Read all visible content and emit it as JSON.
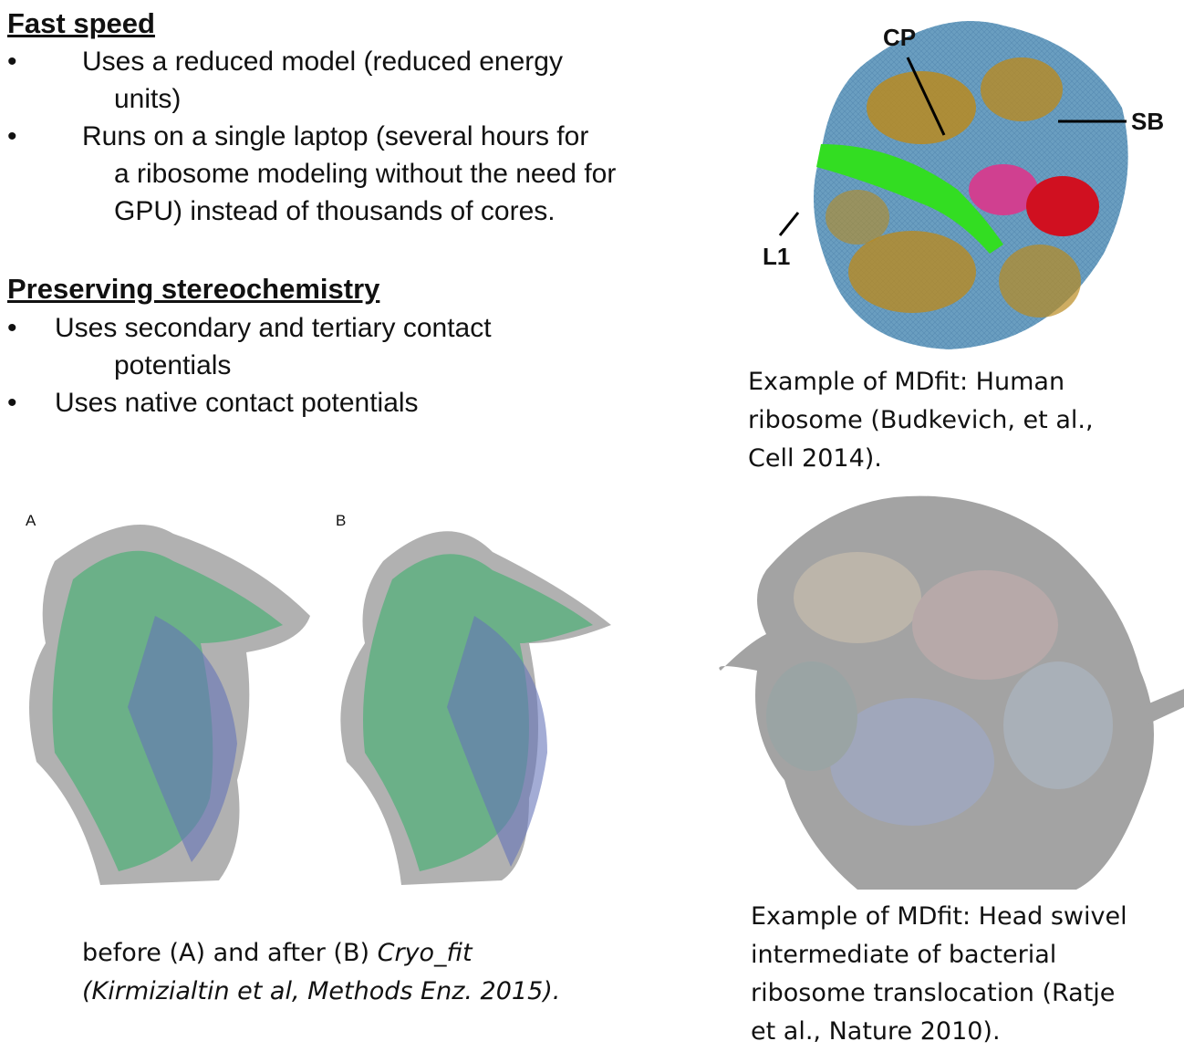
{
  "sections": [
    {
      "heading": "Fast speed",
      "bullets": [
        {
          "line1": "Uses a reduced model (reduced energy",
          "line2": "units)"
        },
        {
          "line1": "Runs on a single laptop (several hours for",
          "line2": "a ribosome modeling without the need for",
          "line3": "GPU) instead of thousands of cores."
        }
      ]
    },
    {
      "heading": "Preserving stereochemistry",
      "bullets": [
        {
          "line1": "Uses secondary and tertiary contact",
          "line2": "potentials"
        },
        {
          "line1": "Uses native contact potentials"
        }
      ]
    }
  ],
  "bullet_glyph": "•",
  "figure_top_right": {
    "labels": {
      "cp": "CP",
      "sb": "SB",
      "l1": "L1"
    },
    "caption": [
      "Example of MDfit: Human",
      "ribosome (Budkevich, et al.,",
      "Cell 2014)."
    ]
  },
  "figure_bottom_left": {
    "panel_a": "A",
    "panel_b": "B",
    "caption_line1_plain": "before (A) and after (B) ",
    "caption_line1_italic": "Cryo_fit",
    "caption_line2_italic": "(Kirmizialtin et al, Methods Enz. 2015)."
  },
  "figure_bottom_right": {
    "caption": [
      "Example of MDfit: Head swivel",
      "intermediate of bacterial",
      "ribosome translocation (Ratje",
      "et al., Nature 2010)."
    ]
  },
  "colors": {
    "rna_green": "#3aa86a",
    "protein_blue": "#5566b0",
    "density_gray": "#9a9a9a",
    "map_blue": "#6a9ec0",
    "map_gold": "#b98a20",
    "trna_green": "#33dd22",
    "pink": "#d04090",
    "red": "#d01020"
  }
}
